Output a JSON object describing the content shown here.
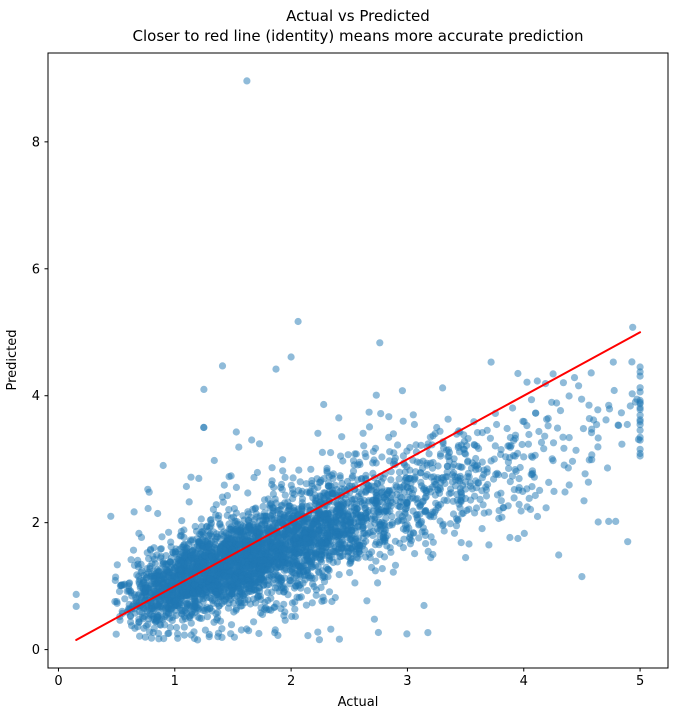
{
  "figure": {
    "background_color": "#ffffff",
    "kind": "matplotlib-style scatter figure"
  },
  "chart_data": {
    "type": "scatter",
    "title": "Actual vs Predicted",
    "subtitle": "Closer to red line (identity) means more accurate prediction",
    "xlabel": "Actual",
    "ylabel": "Predicted",
    "xlim": [
      -0.09,
      5.24
    ],
    "ylim": [
      -0.29,
      9.4
    ],
    "x_ticks": [
      0,
      1,
      2,
      3,
      4,
      5
    ],
    "y_ticks": [
      0,
      2,
      4,
      6,
      8
    ],
    "grid": false,
    "legend": "none",
    "marker": {
      "color": "#1f77b4",
      "opacity": 0.5,
      "radius": 3.6
    },
    "identity_line": {
      "color": "#ff0000",
      "width": 2,
      "x1": 0.152,
      "y1": 0.152,
      "x2": 5.0,
      "y2": 5.0
    },
    "cloud_generator": {
      "comment": "dense cloud of ~3800 semi-transparent points along y≈0.4+0.65x; reproduced with seeded PRNG",
      "seed": 7,
      "n": 3800,
      "x_base": 0.4,
      "x_erlang_k": 3,
      "x_erlang_scale": 0.5,
      "x_cap": 5.0,
      "y_intercept": 0.4,
      "y_slope": 0.65,
      "noise_scale": 0.36,
      "noise_base": 0.7,
      "noise_growth": 0.18,
      "heavy_tail_prob": 0.05,
      "heavy_tail_mult": 2.4,
      "y_floor": 0.15
    },
    "notable_points": [
      [
        1.62,
        8.96
      ],
      [
        2.06,
        5.17
      ],
      [
        2.0,
        4.61
      ],
      [
        1.87,
        4.42
      ],
      [
        1.41,
        4.47
      ],
      [
        1.25,
        4.1
      ],
      [
        3.95,
        4.35
      ],
      [
        4.77,
        4.53
      ],
      [
        4.58,
        4.36
      ],
      [
        4.96,
        3.9
      ],
      [
        5.0,
        3.62
      ],
      [
        5.0,
        3.05
      ],
      [
        4.5,
        1.15
      ],
      [
        2.75,
        0.27
      ],
      [
        0.152,
        0.87
      ],
      [
        0.152,
        0.68
      ],
      [
        1.25,
        3.5
      ],
      [
        0.9,
        2.9
      ],
      [
        1.34,
        2.98
      ],
      [
        1.55,
        3.19
      ],
      [
        0.78,
        2.48
      ],
      [
        0.65,
        2.17
      ],
      [
        0.45,
        2.1
      ],
      [
        1.1,
        2.57
      ],
      [
        1.71,
        2.79
      ],
      [
        2.41,
        3.65
      ],
      [
        2.67,
        3.74
      ],
      [
        2.84,
        3.67
      ],
      [
        3.05,
        3.7
      ],
      [
        1.55,
        0.76
      ],
      [
        1.81,
        0.63
      ],
      [
        2.07,
        0.82
      ],
      [
        2.33,
        0.91
      ],
      [
        1.36,
        0.47
      ],
      [
        3.2,
        1.45
      ],
      [
        3.5,
        1.45
      ],
      [
        3.7,
        1.65
      ],
      [
        3.95,
        1.75
      ],
      [
        4.3,
        1.49
      ],
      [
        4.64,
        2.01
      ],
      [
        4.73,
        2.02
      ],
      [
        4.79,
        2.02
      ],
      [
        2.38,
        0.82
      ],
      [
        0.8,
        0.18
      ]
    ]
  }
}
